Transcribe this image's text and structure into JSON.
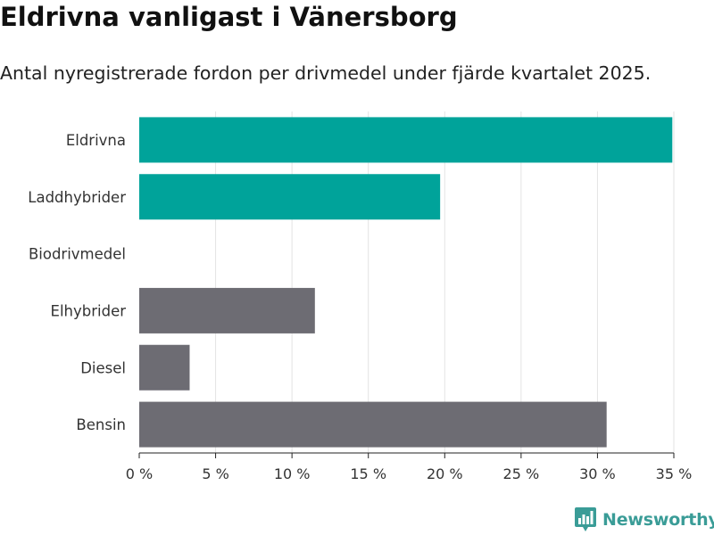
{
  "header": {
    "title": "Eldrivna vanligast i Vänersborg",
    "subtitle": "Antal nyregistrerade fordon per drivmedel under fjärde kvartalet 2025."
  },
  "chart_data": {
    "type": "bar",
    "orientation": "horizontal",
    "title": "Eldrivna vanligast i Vänersborg",
    "subtitle": "Antal nyregistrerade fordon per drivmedel under fjärde kvartalet 2025.",
    "xlabel": "",
    "ylabel": "",
    "xlim": [
      0,
      35
    ],
    "grid": true,
    "categories": [
      "Eldrivna",
      "Laddhybrider",
      "Biodrivmedel",
      "Elhybrider",
      "Diesel",
      "Bensin"
    ],
    "values": [
      34.9,
      19.7,
      0,
      11.5,
      3.3,
      30.6
    ],
    "colors": [
      "#00a39a",
      "#00a39a",
      "#00a39a",
      "#6d6c73",
      "#6d6c73",
      "#6d6c73"
    ],
    "ticks": [
      0,
      5,
      10,
      15,
      20,
      25,
      30,
      35
    ],
    "tick_labels": [
      "0 %",
      "5 %",
      "10 %",
      "15 %",
      "20 %",
      "25 %",
      "30 %",
      "35 %"
    ]
  },
  "branding": {
    "logo_text": "Newsworthy",
    "color": "#3a9c97"
  }
}
